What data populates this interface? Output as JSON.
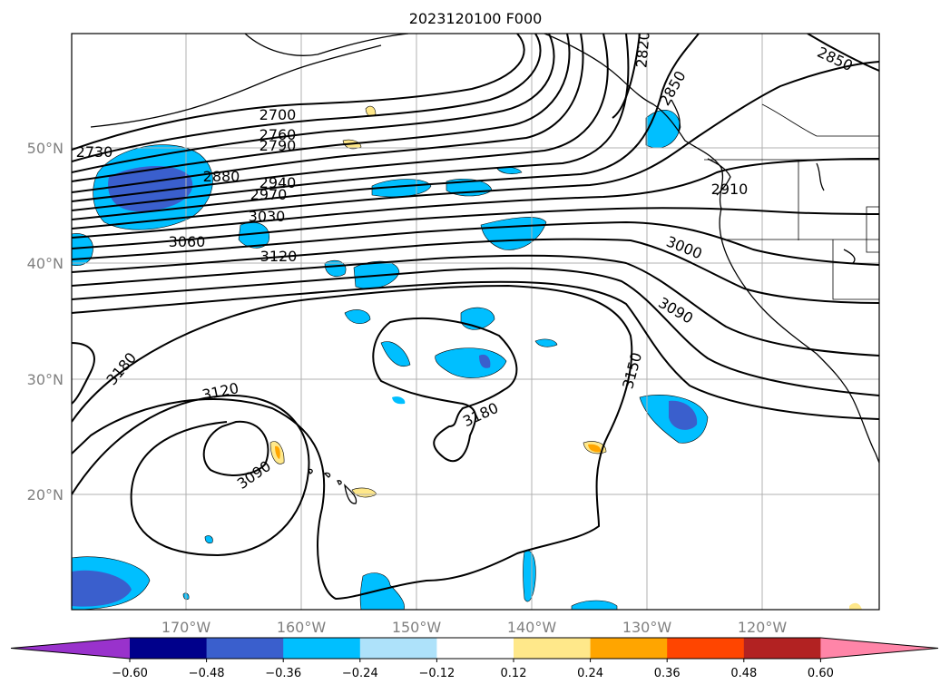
{
  "title": "2023120100 F000",
  "lat_labels": [
    "50°N",
    "40°N",
    "30°N",
    "20°N"
  ],
  "lon_labels": [
    "170°W",
    "160°W",
    "150°W",
    "140°W",
    "130°W",
    "120°W"
  ],
  "contour_labels": [
    "2700",
    "2760",
    "2790",
    "2730",
    "2880",
    "2940",
    "2970",
    "3030",
    "3060",
    "3120",
    "2820",
    "2850",
    "2850",
    "2910",
    "3000",
    "3090",
    "3150",
    "3180",
    "3180",
    "3120",
    "3090"
  ],
  "colorbar": {
    "ticks": [
      "−0.60",
      "−0.48",
      "−0.36",
      "−0.24",
      "−0.12",
      "0.12",
      "0.24",
      "0.36",
      "0.48",
      "0.60"
    ],
    "colors": [
      "#9932cc",
      "#00008b",
      "#3a5fcd",
      "#00bfff",
      "#aee2fa",
      "#ffffff",
      "#ffe88a",
      "#ffa500",
      "#ff4500",
      "#b22222",
      "#ff85a8"
    ]
  }
}
